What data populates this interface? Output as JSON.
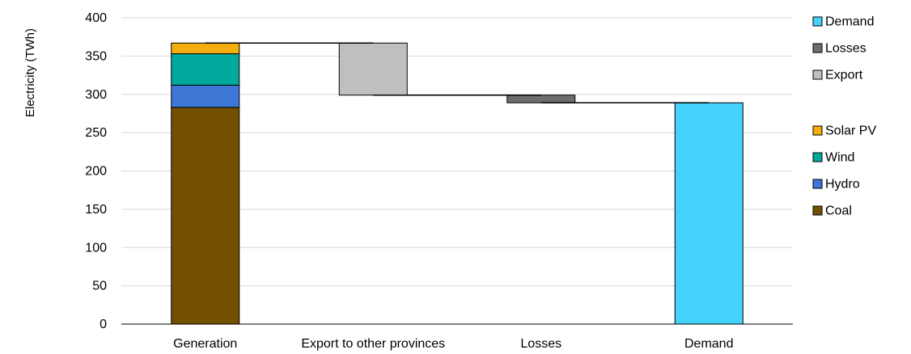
{
  "chart_data": {
    "type": "bar",
    "subtype": "stacked waterfall",
    "title": "",
    "xlabel": "",
    "ylabel": "Electricity (TWh)",
    "ylim": [
      0,
      400
    ],
    "yticks": [
      0,
      50,
      100,
      150,
      200,
      250,
      300,
      350,
      400
    ],
    "grid": true,
    "legend_position": "right",
    "categories": [
      "Generation",
      "Export to other provinces",
      "Losses",
      "Demand"
    ],
    "series": [
      {
        "name": "Coal",
        "color": "#725000",
        "segments": [
          {
            "category": "Generation",
            "base": 0,
            "value": 283
          }
        ]
      },
      {
        "name": "Hydro",
        "color": "#3d78d6",
        "segments": [
          {
            "category": "Generation",
            "base": 283,
            "value": 29
          }
        ]
      },
      {
        "name": "Wind",
        "color": "#00a99c",
        "segments": [
          {
            "category": "Generation",
            "base": 312,
            "value": 41
          }
        ]
      },
      {
        "name": "Solar PV",
        "color": "#f3ad0d",
        "segments": [
          {
            "category": "Generation",
            "base": 353,
            "value": 14
          }
        ]
      },
      {
        "name": "Export",
        "color": "#bfbfbf",
        "segments": [
          {
            "category": "Export to other provinces",
            "base": 299,
            "value": 68
          }
        ]
      },
      {
        "name": "Losses",
        "color": "#6e6e6e",
        "segments": [
          {
            "category": "Losses",
            "base": 289,
            "value": 10
          }
        ]
      },
      {
        "name": "Demand",
        "color": "#44d3fa",
        "segments": [
          {
            "category": "Demand",
            "base": 0,
            "value": 289
          }
        ]
      }
    ],
    "connectors": [
      {
        "from": "Generation",
        "to": "Export to other provinces",
        "value": 367
      },
      {
        "from": "Export to other provinces",
        "to": "Losses",
        "value": 299
      },
      {
        "from": "Losses",
        "to": "Demand",
        "value": 289
      }
    ],
    "legend_groups": [
      [
        "Demand",
        "Losses",
        "Export"
      ],
      [
        "Solar PV",
        "Wind",
        "Hydro",
        "Coal"
      ]
    ]
  }
}
